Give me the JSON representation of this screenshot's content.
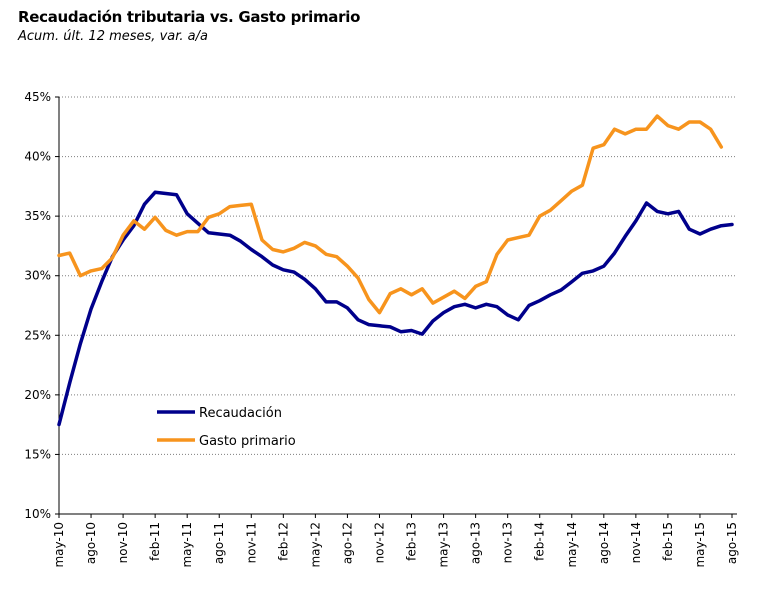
{
  "chart_data": {
    "type": "line",
    "title": "Recaudación tributaria vs. Gasto primario",
    "subtitle": "Acum. últ. 12 meses, var. a/a",
    "xlabel": "",
    "ylabel": "",
    "ylim": [
      10,
      45
    ],
    "y_ticks": [
      "10%",
      "15%",
      "20%",
      "25%",
      "30%",
      "35%",
      "40%",
      "45%"
    ],
    "y_tick_values": [
      10,
      15,
      20,
      25,
      30,
      35,
      40,
      45
    ],
    "x_tick_labels": [
      "may-10",
      "ago-10",
      "nov-10",
      "feb-11",
      "may-11",
      "ago-11",
      "nov-11",
      "feb-12",
      "may-12",
      "ago-12",
      "nov-12",
      "feb-13",
      "may-13",
      "ago-13",
      "nov-13",
      "feb-14",
      "may-14",
      "ago-14",
      "nov-14",
      "feb-15",
      "may-15",
      "ago-15"
    ],
    "grid": true,
    "legend_position": "lower-left",
    "x_start": "may-10",
    "series": [
      {
        "name": "Recaudación",
        "color": "#00008b",
        "values": [
          17.5,
          21.0,
          24.3,
          27.2,
          29.5,
          31.6,
          33.0,
          34.2,
          36.0,
          37.0,
          36.9,
          36.8,
          35.2,
          34.4,
          33.6,
          33.5,
          33.4,
          32.9,
          32.2,
          31.6,
          30.9,
          30.5,
          30.3,
          29.7,
          28.9,
          27.8,
          27.8,
          27.3,
          26.3,
          25.9,
          25.8,
          25.7,
          25.3,
          25.4,
          25.1,
          26.2,
          26.9,
          27.4,
          27.6,
          27.3,
          27.6,
          27.4,
          26.7,
          26.3,
          27.5,
          27.9,
          28.4,
          28.8,
          29.5,
          30.2,
          30.4,
          30.8,
          31.9,
          33.3,
          34.6,
          36.1,
          35.4,
          35.2,
          35.4,
          33.9,
          33.5,
          33.9,
          34.2,
          34.3
        ]
      },
      {
        "name": "Gasto primario",
        "color": "#f7941d",
        "values": [
          31.7,
          31.9,
          30.0,
          30.4,
          30.6,
          31.5,
          33.4,
          34.6,
          33.9,
          34.9,
          33.8,
          33.4,
          33.7,
          33.7,
          34.9,
          35.2,
          35.8,
          35.9,
          36.0,
          33.0,
          32.2,
          32.0,
          32.3,
          32.8,
          32.5,
          31.8,
          31.6,
          30.8,
          29.8,
          28.0,
          26.9,
          28.5,
          28.9,
          28.4,
          28.9,
          27.7,
          28.2,
          28.7,
          28.1,
          29.1,
          29.5,
          31.8,
          33.0,
          33.2,
          33.4,
          35.0,
          35.5,
          36.3,
          37.1,
          37.6,
          40.7,
          41.0,
          42.3,
          41.9,
          42.3,
          42.3,
          43.4,
          42.6,
          42.3,
          42.9,
          42.9,
          42.3,
          40.8
        ]
      }
    ]
  }
}
